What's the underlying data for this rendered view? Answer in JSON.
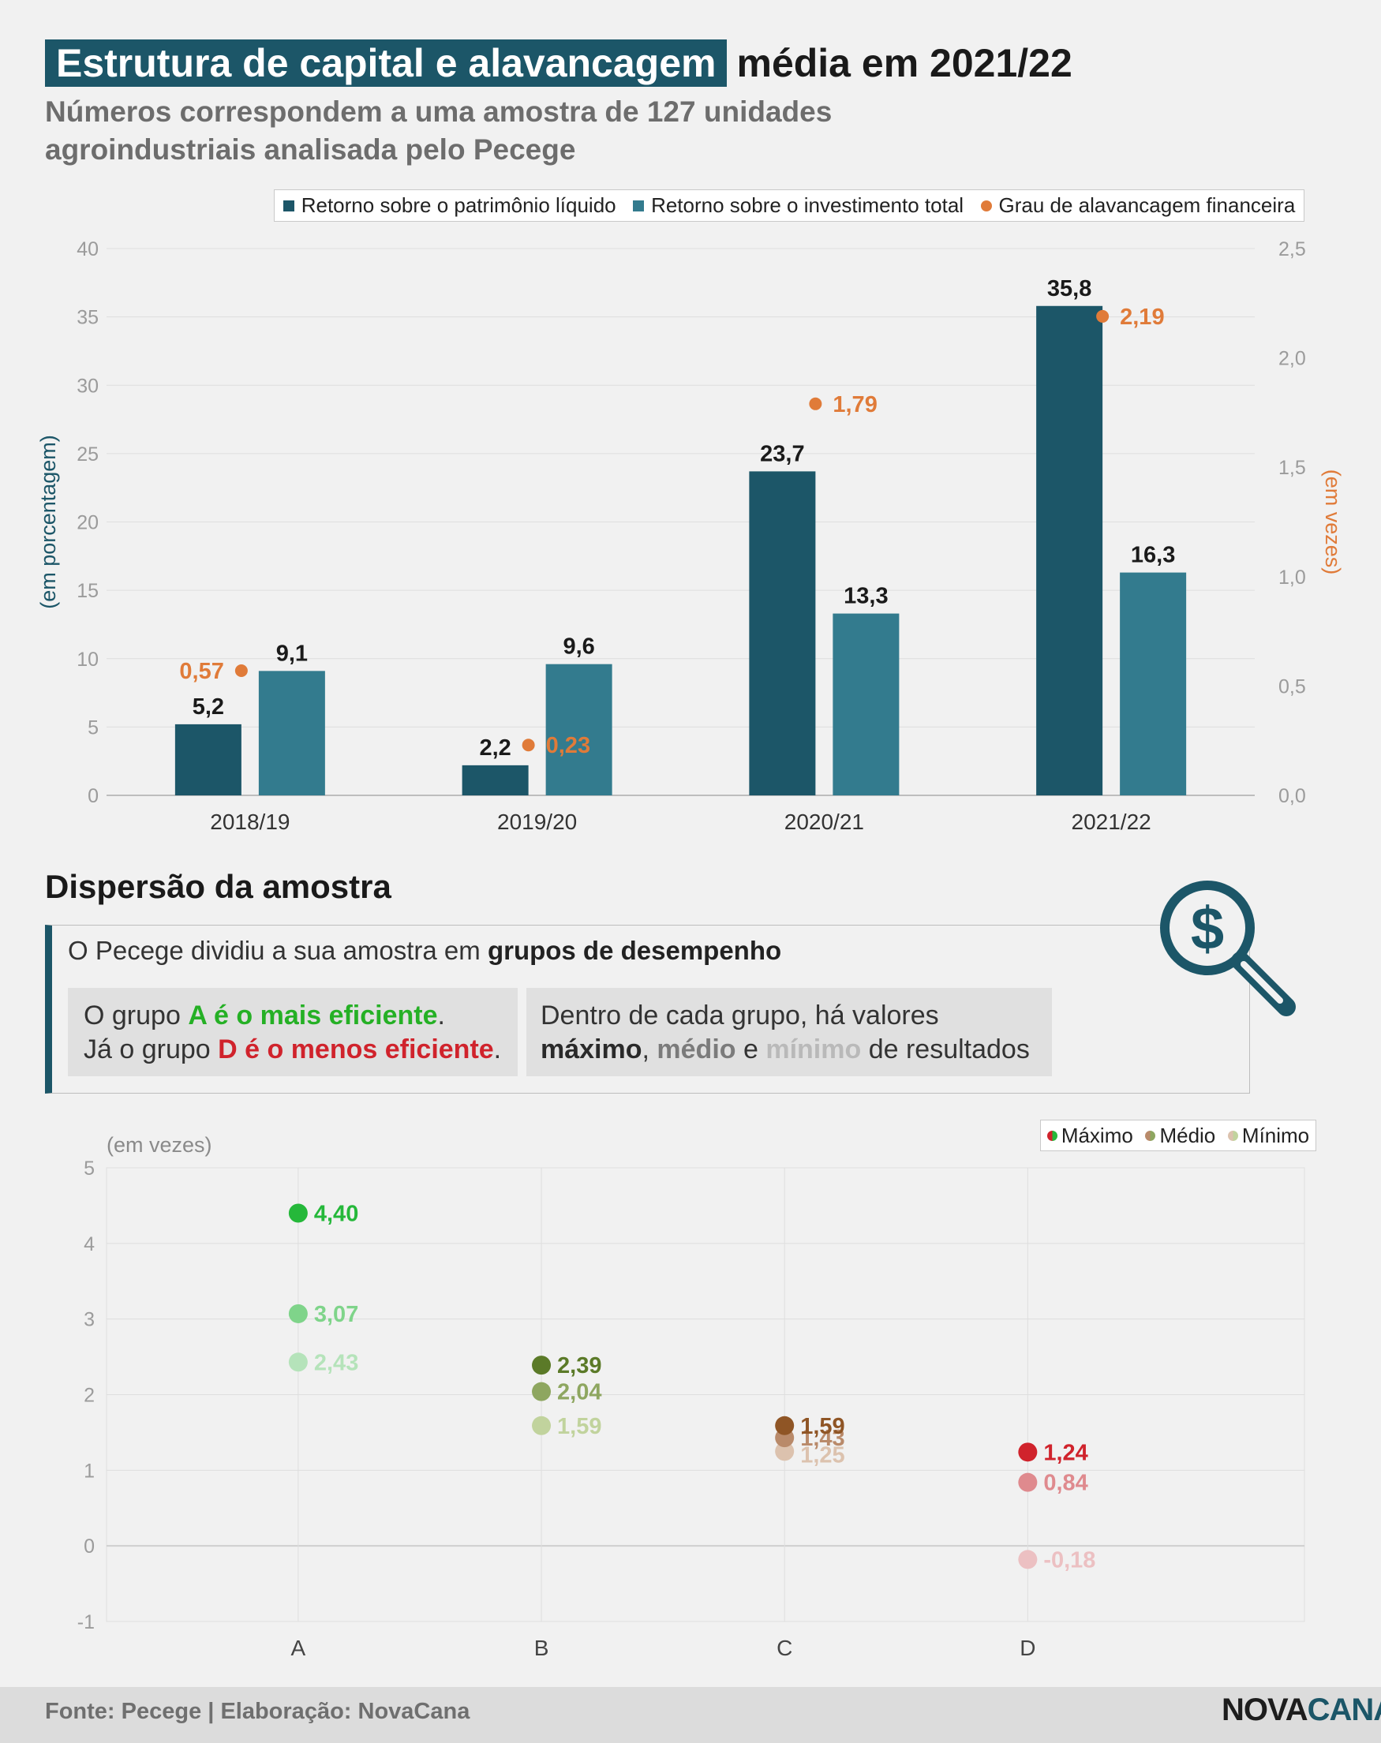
{
  "header": {
    "title_highlight": "Estrutura de capital e alavancagem",
    "title_rest": "média em 2021/22",
    "subtitle": "Números correspondem a uma amostra de 127 unidades agroindustriais analisada pelo Pecege"
  },
  "colors": {
    "roe": "#1c5668",
    "roi": "#337b8e",
    "leverage": "#e07b39",
    "grid": "#dedede",
    "axis_text": "#9b9b9b"
  },
  "chart_data": [
    {
      "type": "bar",
      "categories": [
        "2018/19",
        "2019/20",
        "2020/21",
        "2021/22"
      ],
      "series": [
        {
          "name": "Retorno sobre o patrimônio líquido",
          "values": [
            5.2,
            2.2,
            23.7,
            35.8
          ],
          "labels": [
            "5,2",
            "2,2",
            "23,7",
            "35,8"
          ],
          "color": "#1c5668"
        },
        {
          "name": "Retorno sobre o investimento total",
          "values": [
            9.1,
            9.6,
            13.3,
            16.3
          ],
          "labels": [
            "9,1",
            "9,6",
            "13,3",
            "16,3"
          ],
          "color": "#337b8e"
        },
        {
          "name": "Grau de alavancagem financeira",
          "values": [
            0.57,
            0.23,
            1.79,
            2.19
          ],
          "labels": [
            "0,57",
            "0,23",
            "1,79",
            "2,19"
          ],
          "color": "#e07b39",
          "axis": "right",
          "type": "scatter"
        }
      ],
      "ylabel": "(em porcentagem)",
      "ylabel_right": "(em vezes)",
      "ylim": [
        0,
        40
      ],
      "ylim_right": [
        0,
        2.5
      ],
      "yticks": [
        "0",
        "5",
        "10",
        "15",
        "20",
        "25",
        "30",
        "35",
        "40"
      ],
      "yticks_right": [
        "0,0",
        "0,5",
        "1,0",
        "1,5",
        "2,0",
        "2,5"
      ],
      "legend": "top-right",
      "grid": true
    },
    {
      "type": "scatter",
      "categories": [
        "A",
        "B",
        "C",
        "D"
      ],
      "series": [
        {
          "name": "Máximo",
          "values": [
            4.4,
            2.39,
            1.59,
            1.24
          ],
          "labels": [
            "4,40",
            "2,39",
            "1,59",
            "1,24"
          ]
        },
        {
          "name": "Médio",
          "values": [
            3.07,
            2.04,
            1.43,
            0.84
          ],
          "labels": [
            "3,07",
            "2,04",
            "1,43",
            "0,84"
          ]
        },
        {
          "name": "Mínimo",
          "values": [
            2.43,
            1.59,
            1.25,
            -0.18
          ],
          "labels": [
            "2,43",
            "1,59",
            "1,25",
            "-0,18"
          ]
        }
      ],
      "group_colors": [
        [
          "#25b83a",
          "#7fd48a",
          "#b5e3ba"
        ],
        [
          "#5b7a28",
          "#8ea660",
          "#c1d39d"
        ],
        [
          "#8f5525",
          "#b98a6a",
          "#dcc2ae"
        ],
        [
          "#d0232c",
          "#df8a8e",
          "#ecc0c2"
        ]
      ],
      "ylabel": "(em vezes)",
      "ylim": [
        -1,
        5
      ],
      "yticks": [
        "-1",
        "0",
        "1",
        "2",
        "3",
        "4",
        "5"
      ],
      "legend": "top-right",
      "grid": true
    }
  ],
  "section2": {
    "title": "Dispersão da amostra",
    "info_prefix": "O Pecege dividiu a sua amostra em ",
    "info_bold": "grupos de desempenho",
    "box_a": {
      "l1_pre": "O grupo ",
      "l1_hl": "A é o mais eficiente",
      "l1_post": ".",
      "l2_pre": "Já o grupo ",
      "l2_hl": "D é o menos eficiente",
      "l2_post": "."
    },
    "box_b": {
      "l1": "Dentro de cada grupo, há valores",
      "max": "máximo",
      "sep": ", ",
      "med": "médio",
      "and": " e ",
      "min": "mínimo",
      "post": " de resultados"
    },
    "icon": "dollar-magnifier-icon"
  },
  "footer": {
    "source": "Fonte: Pecege | Elaboração: NovaCana",
    "logo_a": "NOVA",
    "logo_b": "CANA"
  }
}
